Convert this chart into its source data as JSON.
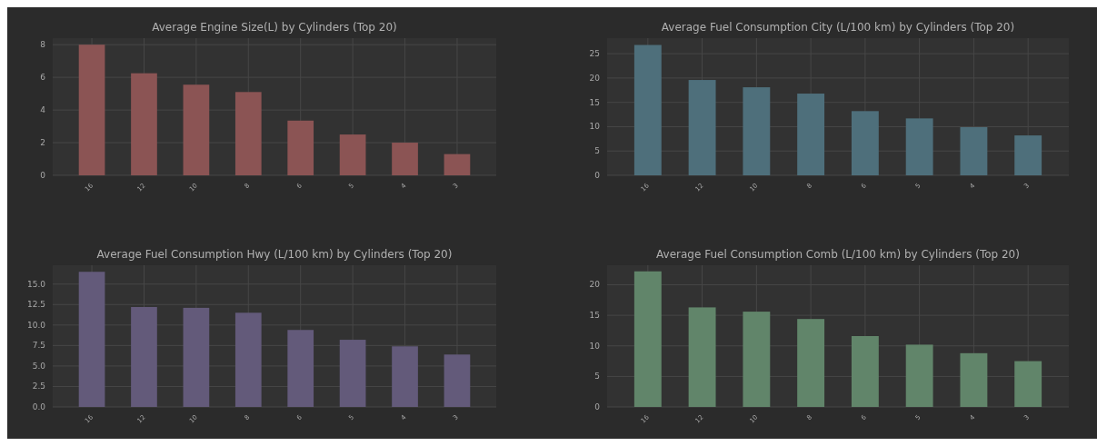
{
  "chart_data": [
    {
      "type": "bar",
      "title": "Average Engine Size(L) by Cylinders (Top 20)",
      "categories": [
        "16",
        "12",
        "10",
        "8",
        "6",
        "5",
        "4",
        "3"
      ],
      "values": [
        8.0,
        6.25,
        5.55,
        5.1,
        3.35,
        2.5,
        2.0,
        1.3
      ],
      "color": "#8b5454",
      "ylim": [
        0,
        8.4
      ],
      "yticks": [
        0,
        2,
        4,
        6,
        8
      ],
      "grid": true
    },
    {
      "type": "bar",
      "title": "Average Fuel Consumption City (L/100 km) by Cylinders (Top 20)",
      "categories": [
        "16",
        "12",
        "10",
        "8",
        "6",
        "5",
        "4",
        "3"
      ],
      "values": [
        26.8,
        19.6,
        18.1,
        16.8,
        13.2,
        11.7,
        9.9,
        8.2
      ],
      "color": "#4e6f7b",
      "ylim": [
        0,
        28.2
      ],
      "yticks": [
        0,
        5,
        10,
        15,
        20,
        25
      ],
      "grid": true
    },
    {
      "type": "bar",
      "title": "Average Fuel Consumption Hwy (L/100 km) by Cylinders (Top 20)",
      "categories": [
        "16",
        "12",
        "10",
        "8",
        "6",
        "5",
        "4",
        "3"
      ],
      "values": [
        16.5,
        12.2,
        12.1,
        11.5,
        9.4,
        8.2,
        7.4,
        6.4
      ],
      "color": "#635a7a",
      "ylim": [
        0,
        17.3
      ],
      "yticks": [
        {
          "value": 0,
          "label": "0.0"
        },
        {
          "value": 2.5,
          "label": "2.5"
        },
        {
          "value": 5,
          "label": "5.0"
        },
        {
          "value": 7.5,
          "label": "7.5"
        },
        {
          "value": 10,
          "label": "10.0"
        },
        {
          "value": 12.5,
          "label": "12.5"
        },
        {
          "value": 15,
          "label": "15.0"
        }
      ],
      "grid": true
    },
    {
      "type": "bar",
      "title": "Average Fuel Consumption Comb (L/100 km) by Cylinders (Top 20)",
      "categories": [
        "16",
        "12",
        "10",
        "8",
        "6",
        "5",
        "4",
        "3"
      ],
      "values": [
        22.2,
        16.3,
        15.6,
        14.4,
        11.6,
        10.2,
        8.8,
        7.5
      ],
      "color": "#61856a",
      "ylim": [
        0,
        23.2
      ],
      "yticks": [
        0,
        5,
        10,
        15,
        20
      ],
      "grid": true
    }
  ]
}
